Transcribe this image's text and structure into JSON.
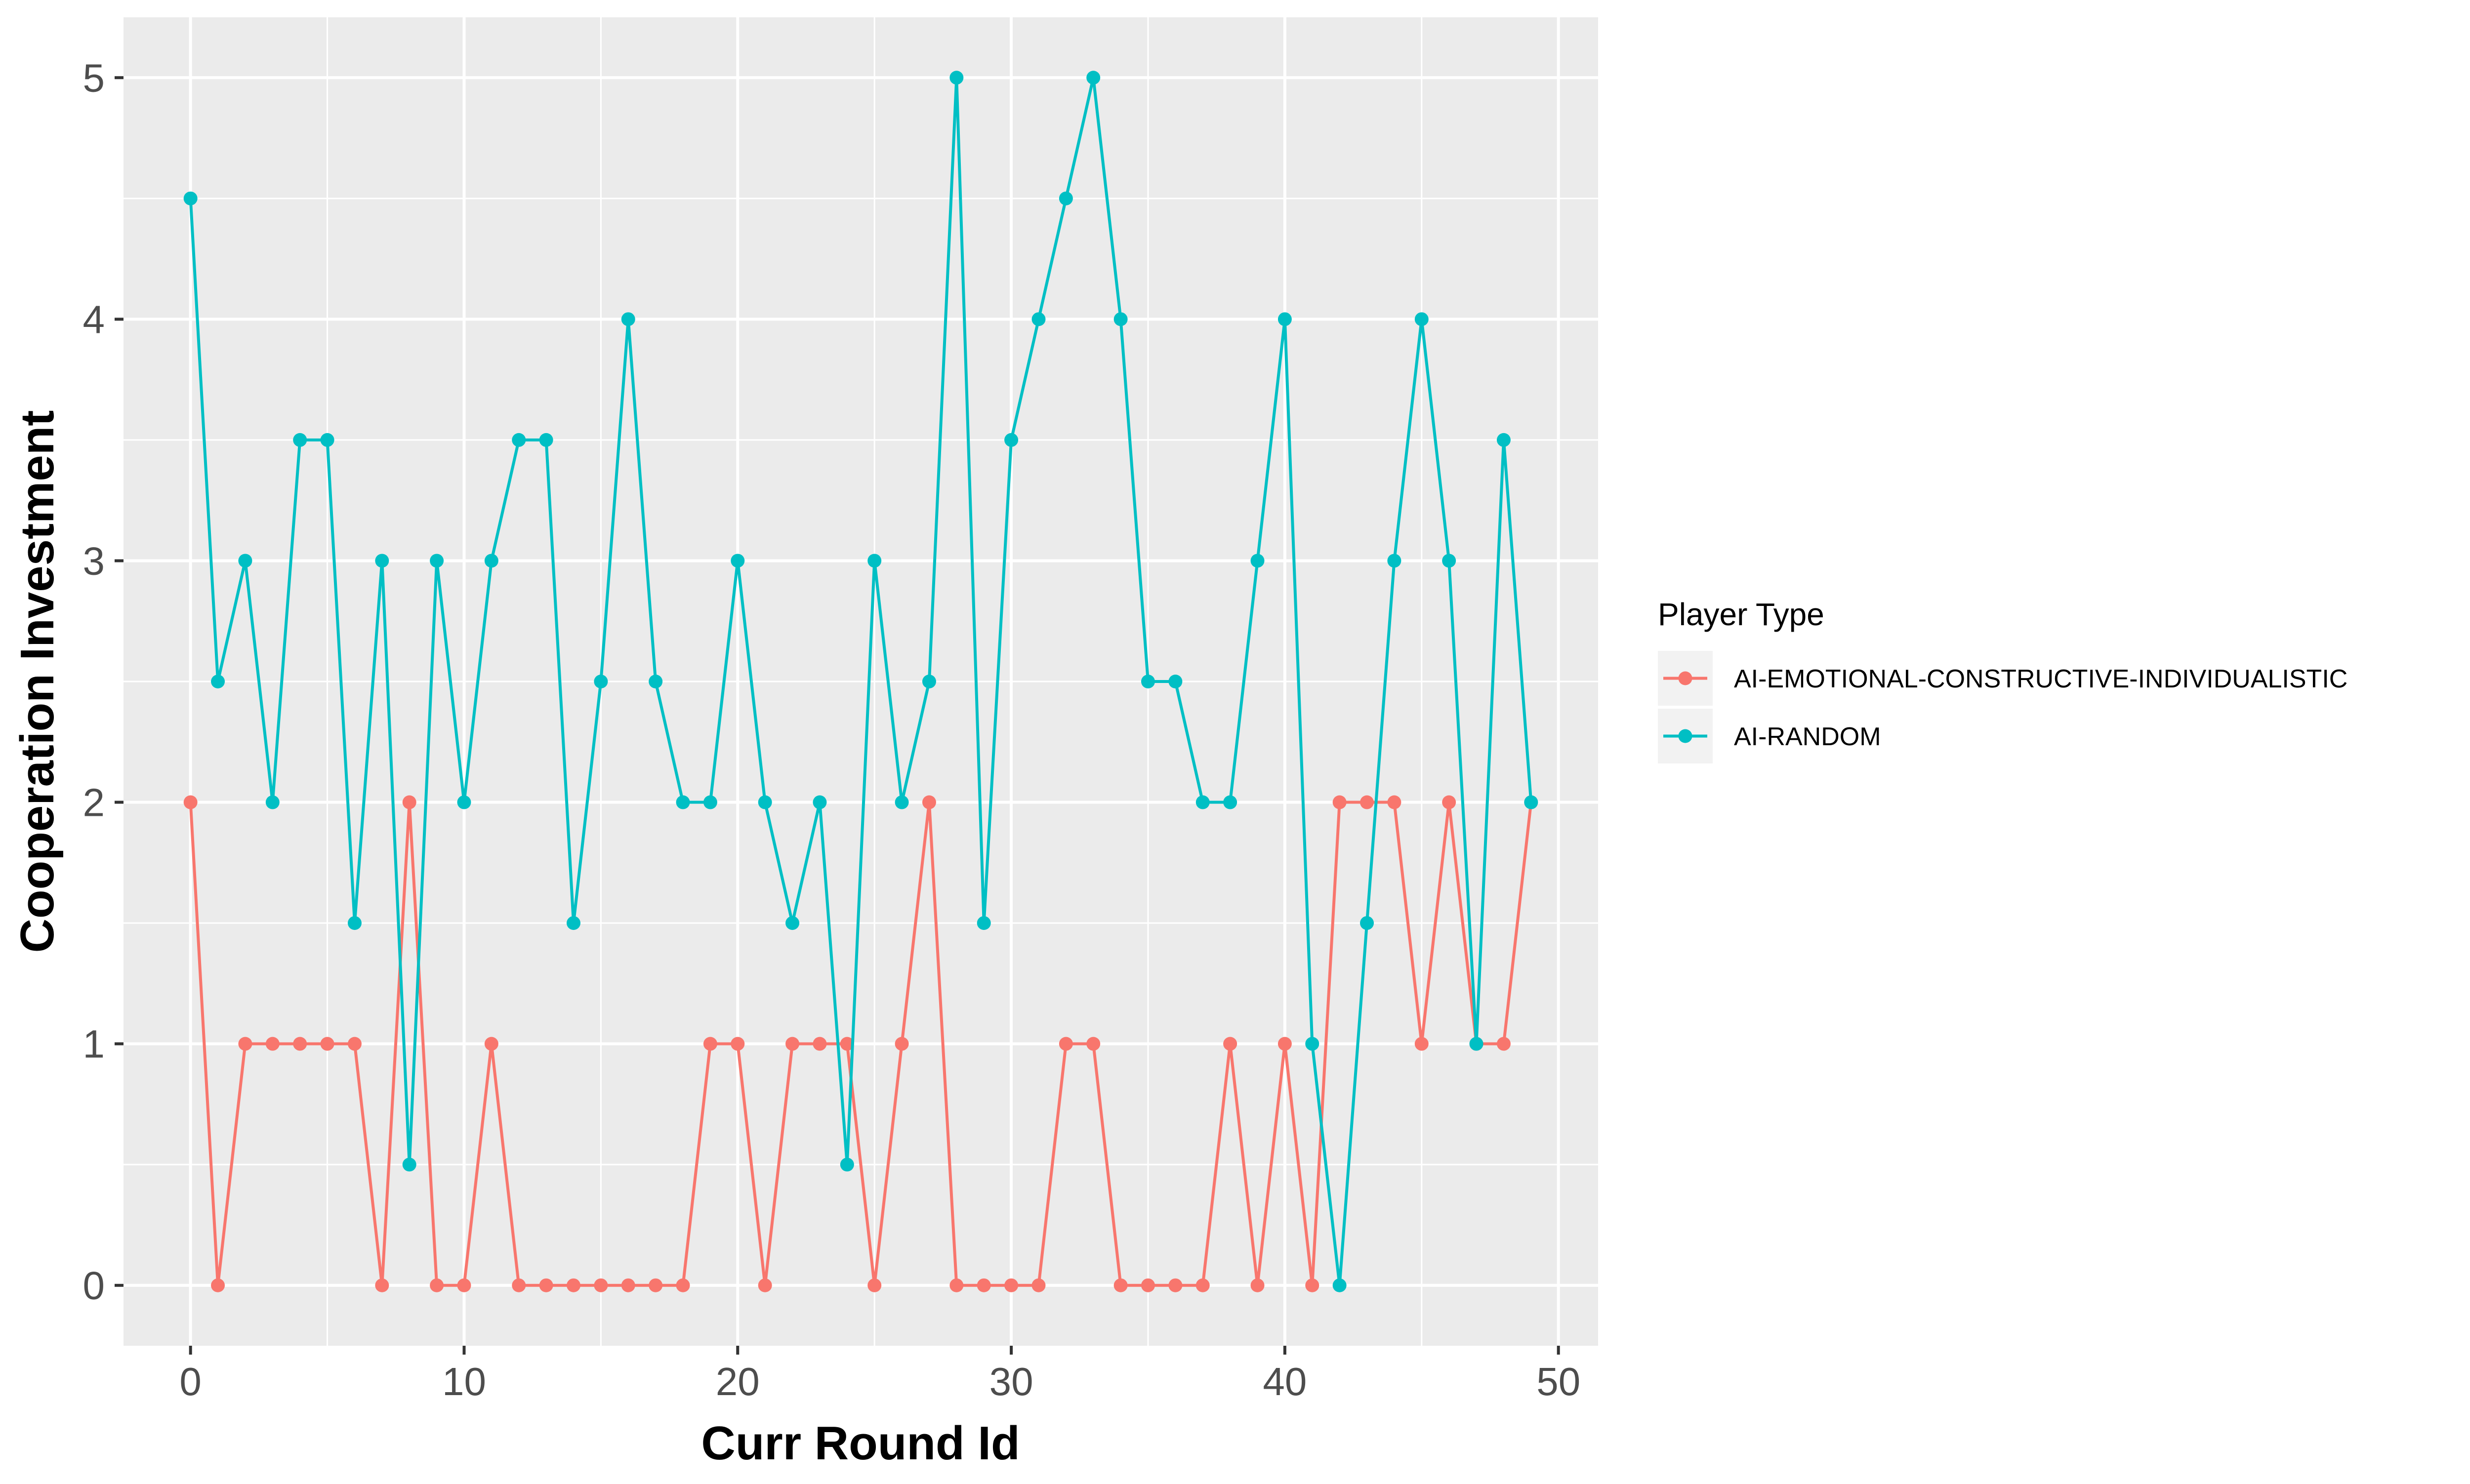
{
  "chart_data": {
    "type": "line",
    "xlabel": "Curr Round Id",
    "ylabel": "Cooperation Investment",
    "xlim": [
      -2.45,
      51.45
    ],
    "ylim": [
      -0.25,
      5.25
    ],
    "x_ticks": [
      0,
      10,
      20,
      30,
      40,
      50
    ],
    "y_ticks": [
      0,
      1,
      2,
      3,
      4,
      5
    ],
    "grid": true,
    "legend": {
      "title": "Player Type",
      "placement": "right"
    },
    "x": [
      0,
      1,
      2,
      3,
      4,
      5,
      6,
      7,
      8,
      9,
      10,
      11,
      12,
      13,
      14,
      15,
      16,
      17,
      18,
      19,
      20,
      21,
      22,
      23,
      24,
      25,
      26,
      27,
      28,
      29,
      30,
      31,
      32,
      33,
      34,
      35,
      36,
      37,
      38,
      39,
      40,
      41,
      42,
      43,
      44,
      45,
      46,
      47,
      48,
      49
    ],
    "series": [
      {
        "name": "AI-EMOTIONAL-CONSTRUCTIVE-INDIVIDUALISTIC",
        "color": "#F8766D",
        "values": [
          2,
          0,
          1,
          1,
          1,
          1,
          1,
          0,
          2,
          0,
          0,
          1,
          0,
          0,
          0,
          0,
          0,
          0,
          0,
          1,
          1,
          0,
          1,
          1,
          1,
          0,
          1,
          2,
          0,
          0,
          0,
          0,
          1,
          1,
          0,
          0,
          0,
          0,
          1,
          0,
          1,
          0,
          2,
          2,
          2,
          1,
          2,
          1,
          1,
          2
        ]
      },
      {
        "name": "AI-RANDOM",
        "color": "#00BFC4",
        "values": [
          4.5,
          2.5,
          3,
          2,
          3.5,
          3.5,
          1.5,
          3,
          0.5,
          3,
          2,
          3,
          3.5,
          3.5,
          1.5,
          2.5,
          4,
          2.5,
          2,
          2,
          3,
          2,
          1.5,
          2,
          0.5,
          3,
          2,
          2.5,
          5,
          1.5,
          3.5,
          4,
          4.5,
          5,
          4,
          2.5,
          2.5,
          2,
          2,
          3,
          4,
          1,
          0,
          1.5,
          3,
          4,
          3,
          1,
          3.5,
          2
        ]
      }
    ]
  }
}
